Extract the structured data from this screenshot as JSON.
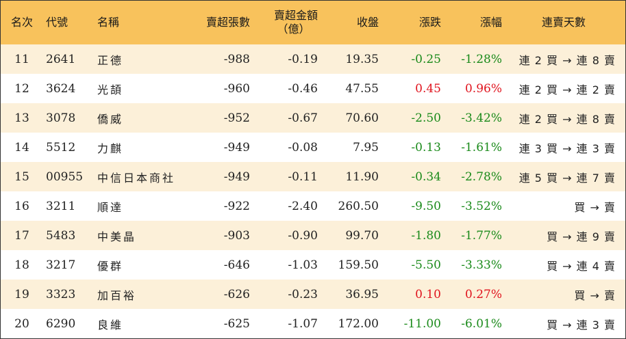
{
  "headers": {
    "rank": "名次",
    "code": "代號",
    "name": "名稱",
    "net_sell_shares": "賣超張數",
    "net_sell_amount_line1": "賣超金額",
    "net_sell_amount_line2": "（億）",
    "close": "收盤",
    "change": "漲跌",
    "change_pct": "漲幅",
    "streak": "連賣天數"
  },
  "colors": {
    "header_bg": "#f8c25c",
    "stripe_bg": "#fcf0d9",
    "down": "#1a8a1a",
    "up": "#e0141e"
  },
  "rows": [
    {
      "rank": "11",
      "code": "2641",
      "name": "正德",
      "shares": "-988",
      "amount": "-0.19",
      "close": "19.35",
      "change": "-0.25",
      "pct": "-1.28%",
      "dir": "down",
      "streak": "連 2 買 → 連 8 賣"
    },
    {
      "rank": "12",
      "code": "3624",
      "name": "光頡",
      "shares": "-960",
      "amount": "-0.46",
      "close": "47.55",
      "change": "0.45",
      "pct": "0.96%",
      "dir": "up",
      "streak": "連 2 買 → 連 2 賣"
    },
    {
      "rank": "13",
      "code": "3078",
      "name": "僑威",
      "shares": "-952",
      "amount": "-0.67",
      "close": "70.60",
      "change": "-2.50",
      "pct": "-3.42%",
      "dir": "down",
      "streak": "連 2 買 → 連 8 賣"
    },
    {
      "rank": "14",
      "code": "5512",
      "name": "力麒",
      "shares": "-949",
      "amount": "-0.08",
      "close": "7.95",
      "change": "-0.13",
      "pct": "-1.61%",
      "dir": "down",
      "streak": "連 3 買 → 連 3 賣"
    },
    {
      "rank": "15",
      "code": "00955",
      "name": "中信日本商社",
      "shares": "-949",
      "amount": "-0.11",
      "close": "11.90",
      "change": "-0.34",
      "pct": "-2.78%",
      "dir": "down",
      "streak": "連 5 買 → 連 7 賣"
    },
    {
      "rank": "16",
      "code": "3211",
      "name": "順達",
      "shares": "-922",
      "amount": "-2.40",
      "close": "260.50",
      "change": "-9.50",
      "pct": "-3.52%",
      "dir": "down",
      "streak": "買 → 賣"
    },
    {
      "rank": "17",
      "code": "5483",
      "name": "中美晶",
      "shares": "-903",
      "amount": "-0.90",
      "close": "99.70",
      "change": "-1.80",
      "pct": "-1.77%",
      "dir": "down",
      "streak": "買 → 連 9 賣"
    },
    {
      "rank": "18",
      "code": "3217",
      "name": "優群",
      "shares": "-646",
      "amount": "-1.03",
      "close": "159.50",
      "change": "-5.50",
      "pct": "-3.33%",
      "dir": "down",
      "streak": "買 → 連 4 賣"
    },
    {
      "rank": "19",
      "code": "3323",
      "name": "加百裕",
      "shares": "-626",
      "amount": "-0.23",
      "close": "36.95",
      "change": "0.10",
      "pct": "0.27%",
      "dir": "up",
      "streak": "買 → 賣"
    },
    {
      "rank": "20",
      "code": "6290",
      "name": "良維",
      "shares": "-625",
      "amount": "-1.07",
      "close": "172.00",
      "change": "-11.00",
      "pct": "-6.01%",
      "dir": "down",
      "streak": "買 → 連 3 賣"
    }
  ]
}
